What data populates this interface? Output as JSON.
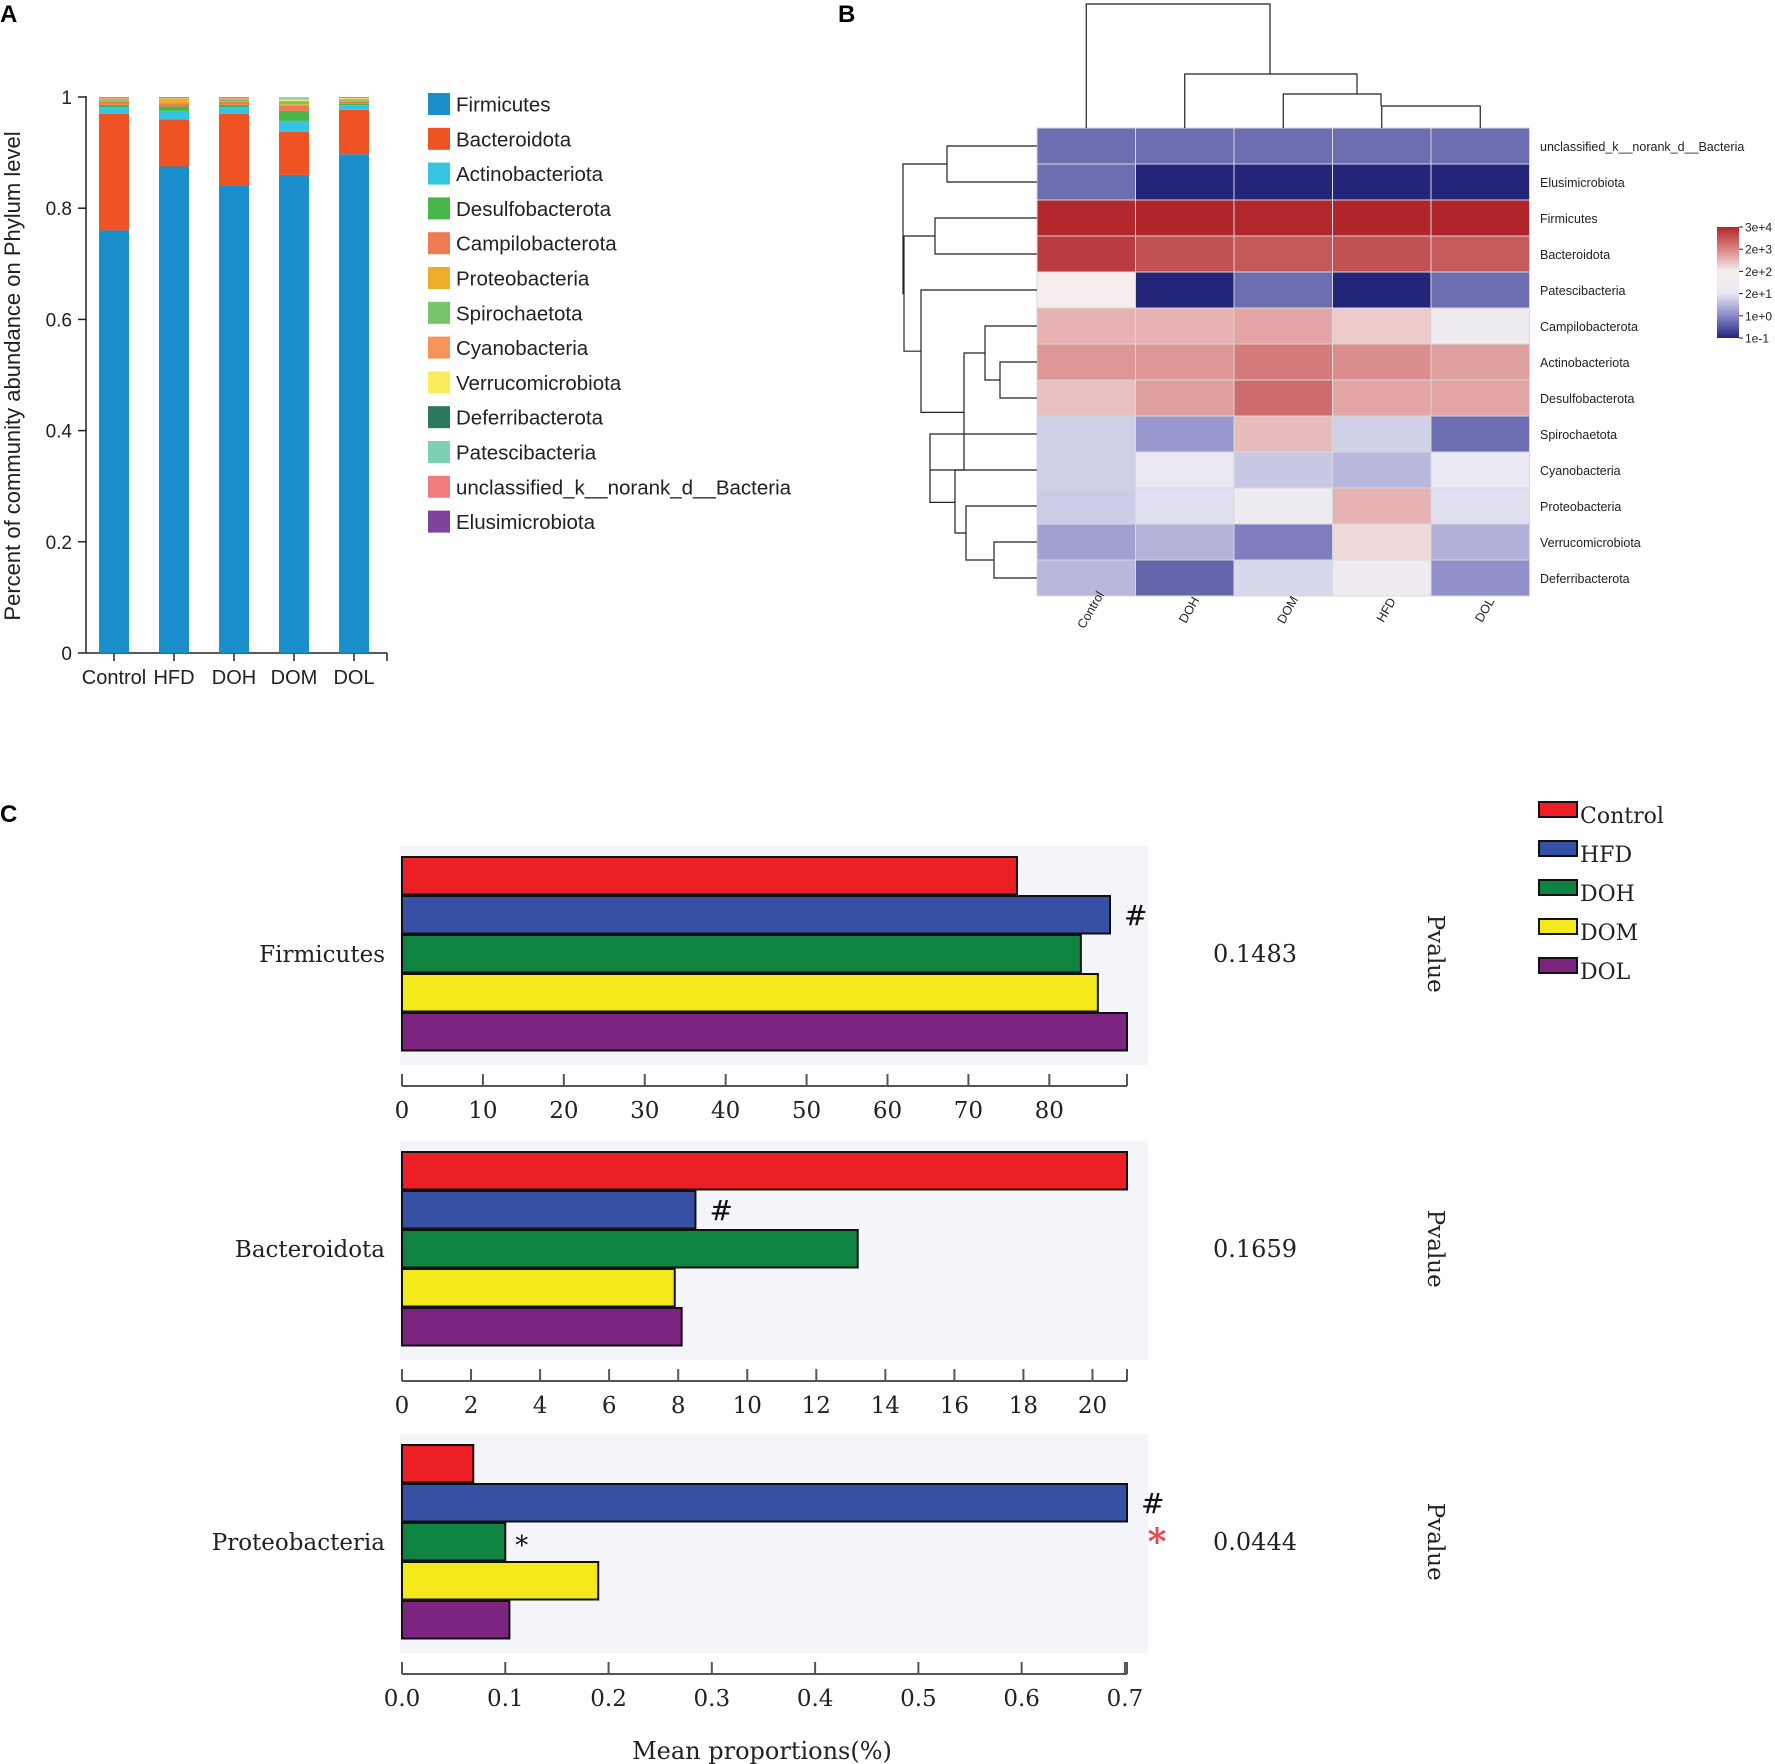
{
  "panel_labels": {
    "a": "A",
    "b": "B",
    "c": "C"
  },
  "chart_data": [
    {
      "panel": "A",
      "type": "bar",
      "stacked": true,
      "title": "",
      "xlabel": "",
      "ylabel": "Percent of community abundance on Phylum level",
      "ylim": [
        0,
        1
      ],
      "yticks": [
        "0",
        "0.2",
        "0.4",
        "0.6",
        "0.8",
        "1"
      ],
      "categories": [
        "Control",
        "HFD",
        "DOH",
        "DOM",
        "DOL"
      ],
      "series": [
        {
          "name": "Firmicutes",
          "color": "#1a8fcc",
          "values": [
            0.76,
            0.875,
            0.84,
            0.86,
            0.897
          ]
        },
        {
          "name": "Bacteroidota",
          "color": "#ef5323",
          "values": [
            0.21,
            0.085,
            0.13,
            0.077,
            0.08
          ]
        },
        {
          "name": "Actinobacteriota",
          "color": "#37c4e2",
          "values": [
            0.012,
            0.015,
            0.012,
            0.02,
            0.008
          ]
        },
        {
          "name": "Desulfobacterota",
          "color": "#48b74a",
          "values": [
            0.004,
            0.008,
            0.004,
            0.018,
            0.003
          ]
        },
        {
          "name": "Campilobacterota",
          "color": "#f07b52",
          "values": [
            0.006,
            0.006,
            0.005,
            0.01,
            0.004
          ]
        },
        {
          "name": "Proteobacteria",
          "color": "#efae2a",
          "values": [
            0.001,
            0.006,
            0.001,
            0.002,
            0.001
          ]
        },
        {
          "name": "Spirochaetota",
          "color": "#78c46a",
          "values": [
            0.003,
            0.002,
            0.004,
            0.004,
            0.003
          ]
        },
        {
          "name": "Cyanobacteria",
          "color": "#f7945c",
          "values": [
            0.002,
            0.001,
            0.002,
            0.002,
            0.001
          ]
        },
        {
          "name": "Verrucomicrobiota",
          "color": "#f9ec5c",
          "values": [
            0.001,
            0.001,
            0.001,
            0.003,
            0.002
          ]
        },
        {
          "name": "Deferribacterota",
          "color": "#2b7a5f",
          "values": [
            0.001,
            0.001,
            0.001,
            0.001,
            0.001
          ]
        },
        {
          "name": "Patescibacteria",
          "color": "#7fd0b2",
          "values": [
            0.0,
            0.0,
            0.0,
            0.001,
            0.0
          ]
        },
        {
          "name": "unclassified_k__norank_d__Bacteria",
          "color": "#f07c7c",
          "values": [
            0.0,
            0.0,
            0.0,
            0.0,
            0.0
          ]
        },
        {
          "name": "Elusimicrobiota",
          "color": "#7e449b",
          "values": [
            0.0,
            0.0,
            0.0,
            0.0,
            0.0
          ]
        }
      ]
    },
    {
      "panel": "B",
      "type": "heatmap",
      "title": "",
      "columns": [
        "Control",
        "DOH",
        "DOM",
        "HFD",
        "DOL"
      ],
      "rows": [
        "unclassified_k__norank_d__Bacteria",
        "Elusimicrobiota",
        "Firmicutes",
        "Bacteroidota",
        "Patescibacteria",
        "Campilobacterota",
        "Actinobacteriota",
        "Desulfobacterota",
        "Spirochaetota",
        "Cyanobacteria",
        "Proteobacteria",
        "Verrucomicrobiota",
        "Deferribacterota"
      ],
      "colorbar_ticks": [
        "3e+4",
        "2e+3",
        "2e+2",
        "2e+1",
        "1e+0",
        "1e-1"
      ],
      "colorbar_colors": [
        "#b2262b",
        "#d98585",
        "#f6eeee",
        "#e8e8f4",
        "#8888c6",
        "#232678"
      ],
      "log10_range": [
        -1,
        4.48
      ],
      "values_log10": [
        [
          -0.2,
          -0.2,
          -0.2,
          -0.2,
          -0.2
        ],
        [
          -0.2,
          -1.0,
          -1.0,
          -1.0,
          -1.0
        ],
        [
          4.45,
          4.48,
          4.47,
          4.48,
          4.48
        ],
        [
          4.2,
          3.95,
          3.85,
          3.95,
          3.82
        ],
        [
          2.15,
          -1.0,
          -0.2,
          -1.0,
          -0.2
        ],
        [
          2.8,
          2.8,
          2.95,
          2.55,
          1.7
        ],
        [
          3.1,
          3.1,
          3.4,
          3.2,
          3.0
        ],
        [
          2.65,
          3.0,
          3.6,
          2.95,
          2.95
        ],
        [
          1.0,
          0.3,
          2.7,
          1.0,
          -0.2
        ],
        [
          1.0,
          1.4,
          0.9,
          0.7,
          1.5
        ],
        [
          0.95,
          1.2,
          1.7,
          2.8,
          1.2
        ],
        [
          0.4,
          0.65,
          0.0,
          2.4,
          0.6
        ],
        [
          0.7,
          -0.3,
          1.1,
          1.8,
          0.2
        ]
      ]
    },
    {
      "panel": "C",
      "type": "bar",
      "orientation": "horizontal",
      "groups": [
        "Control",
        "HFD",
        "DOH",
        "DOM",
        "DOL"
      ],
      "group_colors": [
        "#ec1f24",
        "#3650a3",
        "#0f8342",
        "#f3e81a",
        "#7b2581"
      ],
      "xlabel": "Mean proportions(%)",
      "pvalue_label": "Pvalue",
      "taxa": [
        {
          "name": "Firmicutes",
          "values": [
            76.0,
            87.5,
            83.9,
            86.0,
            89.6
          ],
          "xlim": [
            0,
            89.6
          ],
          "ticks": [
            "0",
            "10",
            "20",
            "30",
            "40",
            "50",
            "60",
            "70",
            "80"
          ],
          "marks": [
            "",
            "#",
            "",
            "",
            ""
          ],
          "pvalue": "0.1483",
          "significant": ""
        },
        {
          "name": "Bacteroidota",
          "values": [
            21.0,
            8.5,
            13.2,
            7.9,
            8.1
          ],
          "xlim": [
            0,
            21.0
          ],
          "ticks": [
            "0",
            "2",
            "4",
            "6",
            "8",
            "10",
            "12",
            "14",
            "16",
            "18",
            "20"
          ],
          "marks": [
            "",
            "#",
            "",
            "",
            ""
          ],
          "pvalue": "0.1659",
          "significant": ""
        },
        {
          "name": "Proteobacteria",
          "values": [
            0.069,
            0.702,
            0.1,
            0.19,
            0.104
          ],
          "xlim": [
            0,
            0.702
          ],
          "ticks": [
            "0.0",
            "0.1",
            "0.2",
            "0.3",
            "0.4",
            "0.5",
            "0.6",
            "0.7"
          ],
          "marks": [
            "",
            "#",
            "*",
            "",
            ""
          ],
          "pvalue": "0.0444",
          "significant": "*"
        }
      ]
    }
  ]
}
